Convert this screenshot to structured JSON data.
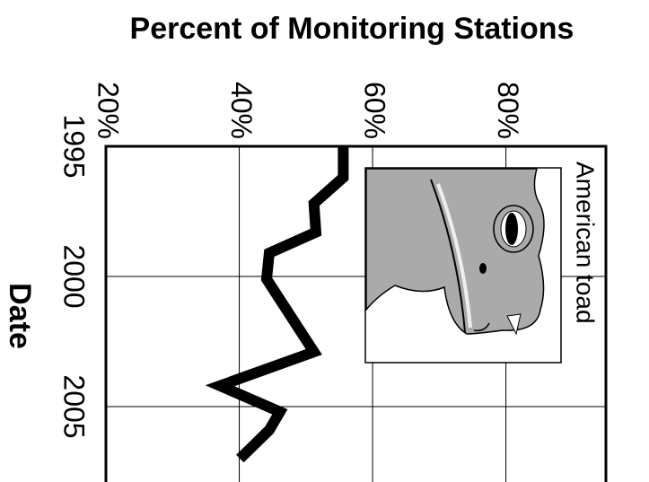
{
  "chart_data": {
    "type": "line",
    "title": "Percent of Monitoring Stations",
    "ylabel": "Date",
    "annotation": "American toad",
    "x": [
      1995.0,
      1996.2,
      1997.2,
      1998.3,
      1999.1,
      2000.1,
      2002.9,
      2004.2,
      2005.2,
      2005.9,
      2007.0
    ],
    "series": [
      {
        "color": "#000000",
        "values": [
          55.6,
          55.6,
          51.2,
          51.5,
          44.5,
          44.1,
          51.2,
          37.1,
          46.1,
          44.5,
          40.1
        ]
      }
    ],
    "xlim": [
      20,
      95
    ],
    "xticks": [
      {
        "value": 20,
        "label": "20%"
      },
      {
        "value": 40,
        "label": "40%"
      },
      {
        "value": 60,
        "label": "60%"
      },
      {
        "value": 80,
        "label": "80%"
      }
    ],
    "ylim": [
      1995,
      2008
    ],
    "yticks": [
      1995,
      2000,
      2005
    ],
    "grid": true
  }
}
